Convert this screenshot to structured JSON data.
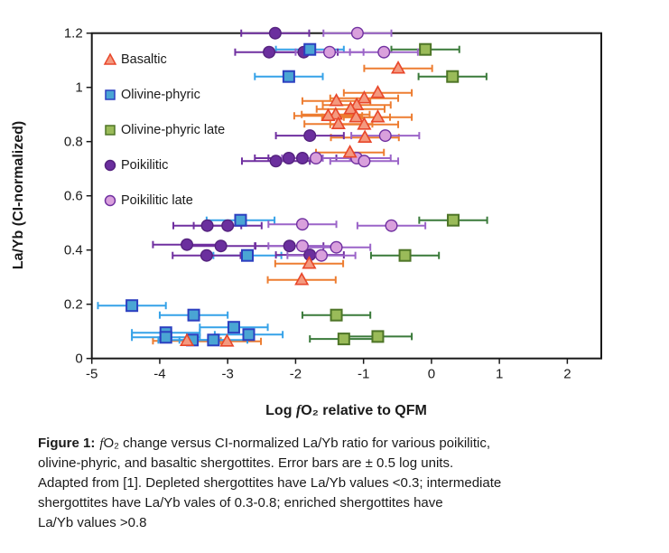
{
  "figure": {
    "ylabel": "La/Yb (CI-normalized)",
    "xlabel": {
      "pre": "Log ",
      "italic_f": "f",
      "post": "O₂ relative to QFM"
    }
  },
  "legend": {
    "items": [
      {
        "label": "Basaltic"
      },
      {
        "label": "Olivine-phyric"
      },
      {
        "label": "Olivine-phyric late"
      },
      {
        "label": "Poikilitic"
      },
      {
        "label": "Poikilitic late"
      }
    ]
  },
  "caption": {
    "figure_label": "Figure 1:",
    "line1_italic": "f",
    "line1_rest": "O₂ change versus CI-normalized La/Yb ratio for various poikilitic,",
    "lines": [
      "olivine-phyric, and basaltic shergottites. Error bars are ± 0.5 log units.",
      "Adapted from [1]. Depleted shergottites have La/Yb values <0.3; intermediate",
      "shergottites have La/Yb vales of 0.3-0.8; enriched shergottites have",
      "La/Yb values >0.8"
    ]
  },
  "chart_data": {
    "type": "scatter",
    "title": "",
    "xlabel": "Log fO2 relative to QFM",
    "ylabel": "La/Yb (CI-normalized)",
    "xlim": [
      -5,
      2.5
    ],
    "ylim": [
      0,
      1.2
    ],
    "x_ticks": [
      -5,
      -4,
      -3,
      -2,
      -1,
      0,
      1,
      2
    ],
    "y_ticks": [
      0,
      0.2,
      0.4,
      0.6,
      0.8,
      1,
      1.2
    ],
    "x_error": 0.5,
    "grid": false,
    "legend_position": "upper-left-inside",
    "series": [
      {
        "name": "Basaltic",
        "marker": "triangle",
        "fill": "#F4997F",
        "stroke": "#E8472B",
        "bar": "#ED7D31",
        "points": [
          [
            -0.49,
            1.07
          ],
          [
            -0.79,
            0.98
          ],
          [
            -0.99,
            0.96
          ],
          [
            -1.4,
            0.95
          ],
          [
            -1.1,
            0.935
          ],
          [
            -1.19,
            0.92
          ],
          [
            -1.41,
            0.9
          ],
          [
            -1.52,
            0.895
          ],
          [
            -1.11,
            0.89
          ],
          [
            -0.79,
            0.89
          ],
          [
            -1.37,
            0.865
          ],
          [
            -0.99,
            0.863
          ],
          [
            -0.98,
            0.815
          ],
          [
            -1.2,
            0.76
          ],
          [
            -1.8,
            0.35
          ],
          [
            -1.91,
            0.29
          ],
          [
            -3.6,
            0.065
          ],
          [
            -3.01,
            0.063
          ]
        ]
      },
      {
        "name": "Olivine-phyric",
        "marker": "square",
        "fill": "#4AA5D4",
        "stroke": "#2C3FC0",
        "bar": "#35A2E8",
        "points": [
          [
            -1.79,
            1.14
          ],
          [
            -2.1,
            1.04
          ],
          [
            -2.81,
            0.51
          ],
          [
            -2.71,
            0.38
          ],
          [
            -4.41,
            0.195
          ],
          [
            -3.5,
            0.16
          ],
          [
            -2.91,
            0.115
          ],
          [
            -2.69,
            0.088
          ],
          [
            -3.91,
            0.095
          ],
          [
            -3.91,
            0.078
          ],
          [
            -3.52,
            0.068
          ],
          [
            -3.21,
            0.068
          ]
        ]
      },
      {
        "name": "Olivine-phyric late",
        "marker": "square",
        "fill": "#9ABB59",
        "stroke": "#4E7527",
        "bar": "#3A7A3A",
        "points": [
          [
            -0.09,
            1.14
          ],
          [
            0.31,
            1.04
          ],
          [
            0.32,
            0.51
          ],
          [
            -0.39,
            0.38
          ],
          [
            -1.4,
            0.16
          ],
          [
            -1.29,
            0.072
          ],
          [
            -0.79,
            0.081
          ]
        ]
      },
      {
        "name": "Poikilitic",
        "marker": "circle",
        "fill": "#6B2F9E",
        "stroke": "#54227E",
        "bar": "#7030A0",
        "points": [
          [
            -2.3,
            1.2
          ],
          [
            -2.39,
            1.13
          ],
          [
            -1.88,
            1.13
          ],
          [
            -1.79,
            0.822
          ],
          [
            -2.29,
            0.728
          ],
          [
            -2.1,
            0.739
          ],
          [
            -1.9,
            0.739
          ],
          [
            -3.3,
            0.49
          ],
          [
            -3.0,
            0.49
          ],
          [
            -3.6,
            0.42
          ],
          [
            -3.1,
            0.415
          ],
          [
            -2.09,
            0.415
          ],
          [
            -3.31,
            0.38
          ],
          [
            -1.79,
            0.382
          ]
        ]
      },
      {
        "name": "Poikilitic late",
        "marker": "circle",
        "fill": "#D9A0DC",
        "stroke": "#7030A0",
        "bar": "#9B64C8",
        "points": [
          [
            -1.09,
            1.2
          ],
          [
            -1.5,
            1.13
          ],
          [
            -0.7,
            1.13
          ],
          [
            -0.68,
            0.822
          ],
          [
            -1.7,
            0.739
          ],
          [
            -1.1,
            0.739
          ],
          [
            -0.99,
            0.728
          ],
          [
            -1.9,
            0.495
          ],
          [
            -0.59,
            0.49
          ],
          [
            -1.9,
            0.415
          ],
          [
            -1.4,
            0.41
          ],
          [
            -1.62,
            0.38
          ]
        ]
      }
    ]
  }
}
